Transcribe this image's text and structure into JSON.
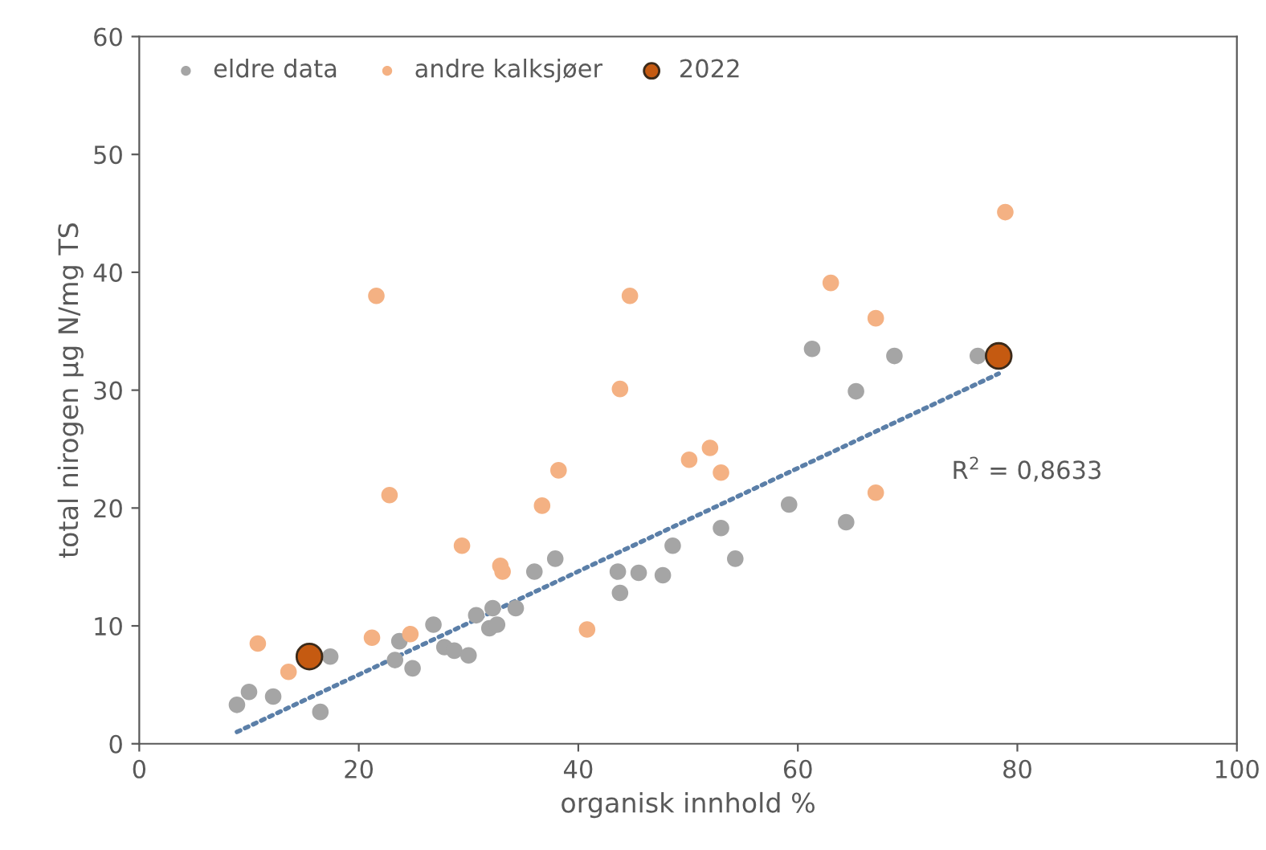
{
  "chart_data": {
    "type": "scatter",
    "xlabel": "organisk innhold %",
    "ylabel": "total nirogen µg N/mg TS",
    "xlim": [
      0,
      100
    ],
    "xticks": [
      0,
      20,
      40,
      60,
      80,
      100
    ],
    "ylim": [
      0,
      60
    ],
    "yticks": [
      0,
      10,
      20,
      30,
      40,
      50,
      60
    ],
    "grid": false,
    "legend": "top left",
    "marker": "circle",
    "series": [
      {
        "name": "eldre data",
        "color": "#a5a5a5",
        "x": [
          8.9,
          10.0,
          12.2,
          16.5,
          17.4,
          23.7,
          23.3,
          24.9,
          26.8,
          27.8,
          28.7,
          30.0,
          30.7,
          32.2,
          31.9,
          32.6,
          34.3,
          36.0,
          37.9,
          43.6,
          43.8,
          48.6,
          45.5,
          47.7,
          53.0,
          54.3,
          59.2,
          61.3,
          65.3,
          64.4,
          68.8,
          76.4
        ],
        "values": [
          3.3,
          4.4,
          4.0,
          2.7,
          7.4,
          8.7,
          7.1,
          6.4,
          10.1,
          8.2,
          7.9,
          7.5,
          10.9,
          11.5,
          9.8,
          10.1,
          11.5,
          14.6,
          15.7,
          14.6,
          12.8,
          16.8,
          14.5,
          14.3,
          18.3,
          15.7,
          20.3,
          33.5,
          29.9,
          18.8,
          32.9,
          32.9
        ]
      },
      {
        "name": "andre kalksjøer",
        "color": "#f4b183",
        "x": [
          10.8,
          13.6,
          22.8,
          21.2,
          24.7,
          29.4,
          32.9,
          33.1,
          36.7,
          38.2,
          40.8,
          21.6,
          44.7,
          43.8,
          50.1,
          52.0,
          53.0,
          63.0,
          67.1,
          67.1,
          78.9
        ],
        "values": [
          8.5,
          6.1,
          21.1,
          9.0,
          9.3,
          16.8,
          15.1,
          14.6,
          20.2,
          23.2,
          9.7,
          38.0,
          38.0,
          30.1,
          24.1,
          25.1,
          23.0,
          39.1,
          36.1,
          21.3,
          45.1
        ]
      },
      {
        "name": "2022",
        "color": "#c55a11",
        "x": [
          15.5,
          78.3
        ],
        "values": [
          7.4,
          32.9
        ]
      },
      {
        "type": "line",
        "color": "#5b7fa8",
        "line_style": "dotted",
        "marker": "none",
        "x": [
          8.9,
          78.3
        ],
        "values": [
          1,
          31.4
        ]
      }
    ],
    "annotations": [
      "R$^{2}$ = 0,8633"
    ]
  }
}
